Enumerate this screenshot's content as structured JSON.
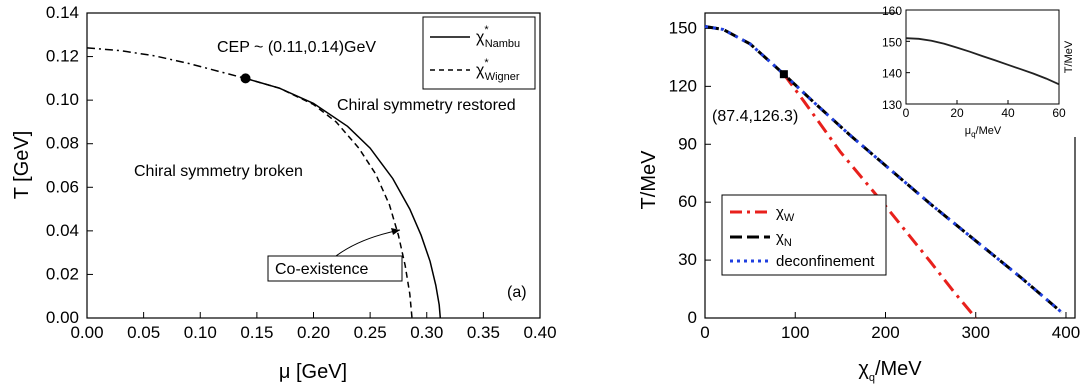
{
  "chart_data": [
    {
      "type": "line",
      "xlabel": "μ [GeV]",
      "ylabel": "T [GeV]",
      "xlim": [
        0.0,
        0.4
      ],
      "ylim": [
        0.0,
        0.14
      ],
      "xticks": [
        "0.00",
        "0.05",
        "0.10",
        "0.15",
        "0.20",
        "0.25",
        "0.30",
        "0.35",
        "0.40"
      ],
      "yticks": [
        "0.00",
        "0.02",
        "0.04",
        "0.06",
        "0.08",
        "0.10",
        "0.12",
        "0.14"
      ],
      "panel_label": "(a)",
      "legend_position": "top-right",
      "legend": [
        {
          "label": "χ*Nambu",
          "sym": "χ",
          "sup": "*",
          "sub": "Nambu",
          "style": "solid"
        },
        {
          "label": "χ*Wigner",
          "sym": "χ",
          "sup": "*",
          "sub": "Wigner",
          "style": "dashed"
        }
      ],
      "annotations": {
        "cep": "CEP ~ (0.11,0.14)GeV",
        "restored": "Chiral symmetry restored",
        "broken": "Chiral symmetry broken",
        "coexistence": "Co-existence"
      },
      "cep_point": {
        "x": 0.14,
        "y": 0.11
      },
      "series": [
        {
          "style": "dashdot",
          "x": [
            0.0,
            0.03,
            0.06,
            0.09,
            0.12,
            0.14
          ],
          "y": [
            0.124,
            0.1227,
            0.1203,
            0.1168,
            0.1127,
            0.11
          ]
        },
        {
          "style": "solid",
          "x": [
            0.14,
            0.17,
            0.2,
            0.23,
            0.25,
            0.27,
            0.285,
            0.295,
            0.303,
            0.308,
            0.311,
            0.312
          ],
          "y": [
            0.11,
            0.1055,
            0.0985,
            0.088,
            0.078,
            0.064,
            0.05,
            0.038,
            0.026,
            0.015,
            0.006,
            0.0
          ]
        },
        {
          "style": "dashed",
          "x": [
            0.14,
            0.17,
            0.2,
            0.22,
            0.24,
            0.255,
            0.267,
            0.275,
            0.281,
            0.285,
            0.287
          ],
          "y": [
            0.11,
            0.1055,
            0.098,
            0.09,
            0.078,
            0.066,
            0.052,
            0.038,
            0.024,
            0.011,
            0.0
          ]
        }
      ]
    },
    {
      "type": "line",
      "xlabel": "μq/MeV",
      "ylabel": "T/MeV",
      "xlim": [
        0,
        410
      ],
      "ylim": [
        0,
        158
      ],
      "xticks": [
        "0",
        "100",
        "200",
        "300",
        "400"
      ],
      "yticks": [
        "0",
        "30",
        "60",
        "90",
        "120",
        "150"
      ],
      "point_label": "(87.4,126.3)",
      "point": {
        "x": 87.4,
        "y": 126.3
      },
      "legend_position": "bottom-left",
      "legend": [
        {
          "label": "χW",
          "sym": "χ",
          "sub": "W",
          "color": "#e8201c",
          "style": "dashdot"
        },
        {
          "label": "χN",
          "sym": "χ",
          "sub": "N",
          "color": "#000000",
          "style": "dashed"
        },
        {
          "label": "deconfinement",
          "color": "#1f3fe0",
          "style": "dotted"
        }
      ],
      "series": [
        {
          "name": "χW",
          "color": "#e8201c",
          "x": [
            87.4,
            110,
            150,
            200,
            250,
            275,
            300
          ],
          "y": [
            126.3,
            112,
            86,
            58,
            29,
            14,
            0
          ]
        },
        {
          "name": "χN",
          "color": "#000000",
          "x": [
            0,
            20,
            50,
            87.4,
            120,
            160,
            200,
            250,
            300,
            350,
            395
          ],
          "y": [
            151,
            149.5,
            142,
            126.3,
            112,
            95,
            79,
            59,
            40,
            21,
            3
          ]
        },
        {
          "name": "deconfinement",
          "color": "#1f3fe0",
          "x": [
            0,
            20,
            50,
            87.4,
            120,
            160,
            200,
            250,
            300,
            350,
            395
          ],
          "y": [
            151,
            149.5,
            142,
            126.3,
            112,
            95,
            79,
            59,
            40,
            21,
            3
          ]
        }
      ],
      "inset": {
        "xlabel": "μq/MeV",
        "ylabel": "T/MeV",
        "xlim": [
          0,
          60
        ],
        "ylim": [
          130,
          160
        ],
        "xticks": [
          "0",
          "20",
          "40",
          "60"
        ],
        "yticks": [
          "130",
          "140",
          "150",
          "160"
        ],
        "series": [
          {
            "x": [
              0,
              5,
              10,
              15,
              20,
              25,
              30,
              35,
              40,
              45,
              50,
              55,
              60
            ],
            "y": [
              151,
              150.8,
              150.2,
              149.2,
              148,
              146.7,
              145.3,
              143.9,
              142.5,
              141.1,
              139.7,
              138.1,
              136.3
            ]
          }
        ]
      }
    }
  ]
}
